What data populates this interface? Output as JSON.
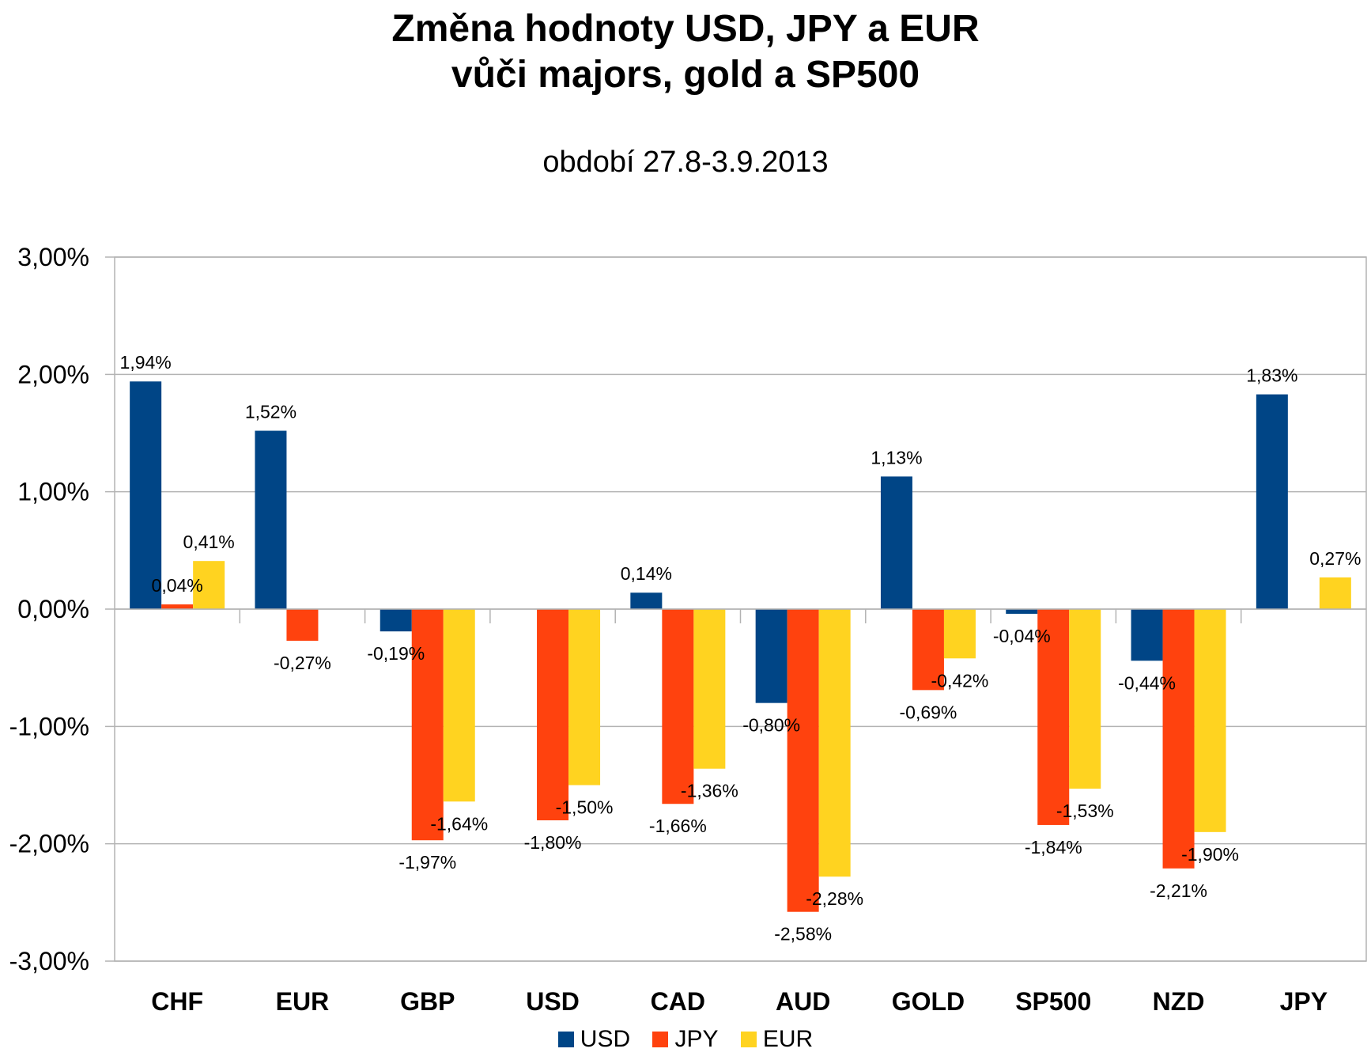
{
  "chart_data": {
    "type": "bar",
    "title_lines": [
      "Změna hodnoty USD, JPY a EUR",
      "vůči majors, gold a SP500"
    ],
    "subtitle": "období 27.8-3.9.2013",
    "categories": [
      "CHF",
      "EUR",
      "GBP",
      "USD",
      "CAD",
      "AUD",
      "GOLD",
      "SP500",
      "NZD",
      "JPY"
    ],
    "series": [
      {
        "name": "USD",
        "color": "#004586",
        "values": [
          1.94,
          1.52,
          -0.19,
          null,
          0.14,
          -0.8,
          1.13,
          -0.04,
          -0.44,
          1.83
        ],
        "labels": [
          "1,94%",
          "1,52%",
          "-0,19%",
          "",
          "0,14%",
          "-0,80%",
          "1,13%",
          "-0,04%",
          "-0,44%",
          "1,83%"
        ]
      },
      {
        "name": "JPY",
        "color": "#ff420e",
        "values": [
          0.04,
          -0.27,
          -1.97,
          -1.8,
          -1.66,
          -2.58,
          -0.69,
          -1.84,
          -2.21,
          null
        ],
        "labels": [
          "0,04%",
          "-0,27%",
          "-1,97%",
          "-1,80%",
          "-1,66%",
          "-2,58%",
          "-0,69%",
          "-1,84%",
          "-2,21%",
          ""
        ]
      },
      {
        "name": "EUR",
        "color": "#ffd320",
        "values": [
          0.41,
          null,
          -1.64,
          -1.5,
          -1.36,
          -2.28,
          -0.42,
          -1.53,
          -1.9,
          0.27
        ],
        "labels": [
          "0,41%",
          "",
          "-1,64%",
          "-1,50%",
          "-1,36%",
          "-2,28%",
          "-0,42%",
          "-1,53%",
          "-1,90%",
          "0,27%"
        ]
      }
    ],
    "yticks": [
      3,
      2,
      1,
      0,
      -1,
      -2,
      -3
    ],
    "ytick_labels": [
      "3,00%",
      "2,00%",
      "1,00%",
      "0,00%",
      "-1,00%",
      "-2,00%",
      "-3,00%"
    ],
    "ylim": [
      -3,
      3
    ],
    "grid": true,
    "legend_position": "bottom"
  }
}
